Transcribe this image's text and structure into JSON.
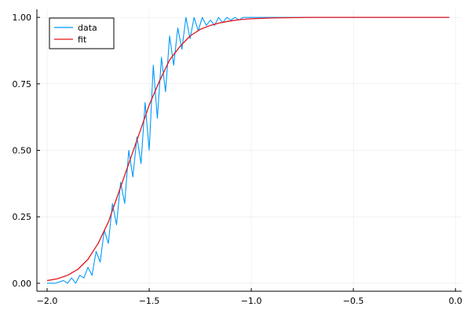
{
  "chart_data": {
    "type": "line",
    "title": "",
    "xlabel": "",
    "ylabel": "",
    "xlim": [
      -2.05,
      0.03
    ],
    "ylim": [
      -0.03,
      1.03
    ],
    "grid": true,
    "legend_position": "top-left",
    "x_ticks": [
      {
        "value": -2.0,
        "label": "−2.0"
      },
      {
        "value": -1.5,
        "label": "−1.5"
      },
      {
        "value": -1.0,
        "label": "−1.0"
      },
      {
        "value": -0.5,
        "label": "−0.5"
      },
      {
        "value": 0.0,
        "label": "0.0"
      }
    ],
    "y_ticks": [
      {
        "value": 0.0,
        "label": "0.00"
      },
      {
        "value": 0.25,
        "label": "0.25"
      },
      {
        "value": 0.5,
        "label": "0.50"
      },
      {
        "value": 0.75,
        "label": "0.75"
      },
      {
        "value": 1.0,
        "label": "1.00"
      }
    ],
    "series": [
      {
        "name": "data",
        "color": "#009af9",
        "x": [
          -2.0,
          -1.98,
          -1.96,
          -1.94,
          -1.92,
          -1.9,
          -1.88,
          -1.86,
          -1.84,
          -1.82,
          -1.8,
          -1.78,
          -1.76,
          -1.74,
          -1.72,
          -1.7,
          -1.68,
          -1.66,
          -1.64,
          -1.62,
          -1.6,
          -1.58,
          -1.56,
          -1.54,
          -1.52,
          -1.5,
          -1.48,
          -1.46,
          -1.44,
          -1.42,
          -1.4,
          -1.38,
          -1.36,
          -1.34,
          -1.32,
          -1.3,
          -1.28,
          -1.26,
          -1.24,
          -1.22,
          -1.2,
          -1.18,
          -1.16,
          -1.14,
          -1.12,
          -1.1,
          -1.08,
          -1.06,
          -1.04,
          -1.02,
          -1.0,
          -0.9,
          -0.8,
          -0.7,
          -0.6,
          -0.5,
          -0.4,
          -0.3,
          -0.2,
          -0.1,
          -0.03
        ],
        "y": [
          0.0,
          0.0,
          0.0,
          0.005,
          0.01,
          0.0,
          0.02,
          0.0,
          0.03,
          0.02,
          0.06,
          0.03,
          0.12,
          0.08,
          0.2,
          0.15,
          0.3,
          0.22,
          0.38,
          0.3,
          0.5,
          0.4,
          0.55,
          0.45,
          0.68,
          0.5,
          0.82,
          0.62,
          0.85,
          0.72,
          0.93,
          0.82,
          0.96,
          0.88,
          1.0,
          0.92,
          1.0,
          0.95,
          1.0,
          0.97,
          0.99,
          0.97,
          1.0,
          0.98,
          1.0,
          0.99,
          1.0,
          0.99,
          1.0,
          1.0,
          1.0,
          1.0,
          1.0,
          1.0,
          1.0,
          1.0,
          1.0,
          1.0,
          1.0,
          1.0,
          1.0
        ]
      },
      {
        "name": "fit",
        "color": "#e3141b",
        "x": [
          -2.0,
          -1.95,
          -1.9,
          -1.85,
          -1.8,
          -1.75,
          -1.7,
          -1.65,
          -1.6,
          -1.55,
          -1.5,
          -1.45,
          -1.4,
          -1.35,
          -1.3,
          -1.25,
          -1.2,
          -1.15,
          -1.1,
          -1.05,
          -1.0,
          -0.9,
          -0.8,
          -0.7,
          -0.6,
          -0.5,
          -0.4,
          -0.3,
          -0.2,
          -0.1,
          -0.03
        ],
        "y": [
          0.01,
          0.017,
          0.03,
          0.052,
          0.09,
          0.15,
          0.23,
          0.34,
          0.45,
          0.56,
          0.67,
          0.76,
          0.84,
          0.89,
          0.93,
          0.955,
          0.97,
          0.98,
          0.987,
          0.992,
          0.995,
          0.998,
          0.999,
          1.0,
          1.0,
          1.0,
          1.0,
          1.0,
          1.0,
          1.0,
          1.0
        ]
      }
    ]
  }
}
